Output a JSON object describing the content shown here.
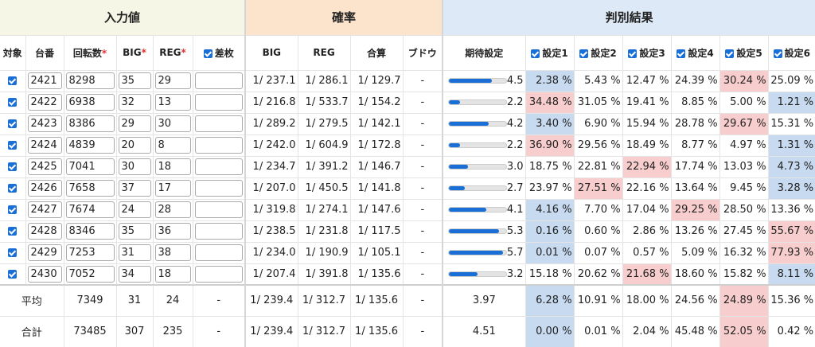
{
  "headers": {
    "input_group": "入力値",
    "prob_group": "確率",
    "result_group": "判別結果",
    "cols": [
      "対象",
      "台番",
      "回転数",
      "BIG",
      "REG",
      "差枚",
      "BIG",
      "REG",
      "合算",
      "ブドウ",
      "期待設定",
      "設定1",
      "設定2",
      "設定3",
      "設定4",
      "設定5",
      "設定6"
    ]
  },
  "rows": [
    {
      "no": "2421",
      "spins": "8298",
      "big": "35",
      "reg": "29",
      "diff": "",
      "pbig": "1/ 237.1",
      "preg": "1/ 286.1",
      "ptot": "1/ 129.7",
      "budou": "-",
      "exp": "4.5",
      "exp_frac": 0.75,
      "s": [
        "2.38 %",
        "5.43 %",
        "12.47 %",
        "24.39 %",
        "30.24 %",
        "25.09 %"
      ],
      "hi": [
        1,
        0,
        0,
        0,
        2,
        0
      ]
    },
    {
      "no": "2422",
      "spins": "6938",
      "big": "32",
      "reg": "13",
      "diff": "",
      "pbig": "1/ 216.8",
      "preg": "1/ 533.7",
      "ptot": "1/ 154.2",
      "budou": "-",
      "exp": "2.2",
      "exp_frac": 0.2,
      "s": [
        "34.48 %",
        "31.05 %",
        "19.41 %",
        "8.85 %",
        "5.00 %",
        "1.21 %"
      ],
      "hi": [
        2,
        0,
        0,
        0,
        0,
        1
      ]
    },
    {
      "no": "2423",
      "spins": "8386",
      "big": "29",
      "reg": "30",
      "diff": "",
      "pbig": "1/ 289.2",
      "preg": "1/ 279.5",
      "ptot": "1/ 142.1",
      "budou": "-",
      "exp": "4.2",
      "exp_frac": 0.7,
      "s": [
        "3.40 %",
        "6.90 %",
        "15.94 %",
        "28.78 %",
        "29.67 %",
        "15.31 %"
      ],
      "hi": [
        1,
        0,
        0,
        0,
        2,
        0
      ]
    },
    {
      "no": "2424",
      "spins": "4839",
      "big": "20",
      "reg": "8",
      "diff": "",
      "pbig": "1/ 242.0",
      "preg": "1/ 604.9",
      "ptot": "1/ 172.8",
      "budou": "-",
      "exp": "2.2",
      "exp_frac": 0.2,
      "s": [
        "36.90 %",
        "29.56 %",
        "18.49 %",
        "8.77 %",
        "4.97 %",
        "1.31 %"
      ],
      "hi": [
        2,
        0,
        0,
        0,
        0,
        1
      ]
    },
    {
      "no": "2425",
      "spins": "7041",
      "big": "30",
      "reg": "18",
      "diff": "",
      "pbig": "1/ 234.7",
      "preg": "1/ 391.2",
      "ptot": "1/ 146.7",
      "budou": "-",
      "exp": "3.0",
      "exp_frac": 0.33,
      "s": [
        "18.75 %",
        "22.81 %",
        "22.94 %",
        "17.74 %",
        "13.03 %",
        "4.73 %"
      ],
      "hi": [
        0,
        0,
        2,
        0,
        0,
        1
      ]
    },
    {
      "no": "2426",
      "spins": "7658",
      "big": "37",
      "reg": "17",
      "diff": "",
      "pbig": "1/ 207.0",
      "preg": "1/ 450.5",
      "ptot": "1/ 141.8",
      "budou": "-",
      "exp": "2.7",
      "exp_frac": 0.28,
      "s": [
        "23.97 %",
        "27.51 %",
        "22.16 %",
        "13.64 %",
        "9.45 %",
        "3.28 %"
      ],
      "hi": [
        0,
        2,
        0,
        0,
        0,
        1
      ]
    },
    {
      "no": "2427",
      "spins": "7674",
      "big": "24",
      "reg": "28",
      "diff": "",
      "pbig": "1/ 319.8",
      "preg": "1/ 274.1",
      "ptot": "1/ 147.6",
      "budou": "-",
      "exp": "4.1",
      "exp_frac": 0.66,
      "s": [
        "4.16 %",
        "7.70 %",
        "17.04 %",
        "29.25 %",
        "28.50 %",
        "13.36 %"
      ],
      "hi": [
        1,
        0,
        0,
        2,
        0,
        0
      ]
    },
    {
      "no": "2428",
      "spins": "8346",
      "big": "35",
      "reg": "36",
      "diff": "",
      "pbig": "1/ 238.5",
      "preg": "1/ 231.8",
      "ptot": "1/ 117.5",
      "budou": "-",
      "exp": "5.3",
      "exp_frac": 0.88,
      "s": [
        "0.16 %",
        "0.60 %",
        "2.86 %",
        "13.26 %",
        "27.45 %",
        "55.67 %"
      ],
      "hi": [
        1,
        0,
        0,
        0,
        0,
        2
      ]
    },
    {
      "no": "2429",
      "spins": "7253",
      "big": "31",
      "reg": "38",
      "diff": "",
      "pbig": "1/ 234.0",
      "preg": "1/ 190.9",
      "ptot": "1/ 105.1",
      "budou": "-",
      "exp": "5.7",
      "exp_frac": 0.94,
      "s": [
        "0.01 %",
        "0.07 %",
        "0.57 %",
        "5.09 %",
        "16.32 %",
        "77.93 %"
      ],
      "hi": [
        1,
        0,
        0,
        0,
        0,
        2
      ]
    },
    {
      "no": "2430",
      "spins": "7052",
      "big": "34",
      "reg": "18",
      "diff": "",
      "pbig": "1/ 207.4",
      "preg": "1/ 391.8",
      "ptot": "1/ 135.6",
      "budou": "-",
      "exp": "3.2",
      "exp_frac": 0.5,
      "s": [
        "15.18 %",
        "20.62 %",
        "21.68 %",
        "18.60 %",
        "15.82 %",
        "8.11 %"
      ],
      "hi": [
        0,
        0,
        2,
        0,
        0,
        1
      ]
    }
  ],
  "avg": {
    "label": "平均",
    "spins": "7349",
    "big": "31",
    "reg": "24",
    "diff": "-",
    "pbig": "1/ 239.4",
    "preg": "1/ 312.7",
    "ptot": "1/ 135.6",
    "budou": "-",
    "exp": "3.97",
    "s": [
      "6.28 %",
      "10.91 %",
      "18.00 %",
      "24.56 %",
      "24.89 %",
      "15.36 %"
    ],
    "hi": [
      1,
      0,
      0,
      0,
      2,
      0
    ]
  },
  "total": {
    "label": "合計",
    "spins": "73485",
    "big": "307",
    "reg": "235",
    "diff": "-",
    "pbig": "1/ 239.4",
    "preg": "1/ 312.7",
    "ptot": "1/ 135.6",
    "budou": "-",
    "exp": "4.51",
    "s": [
      "0.00 %",
      "0.01 %",
      "2.04 %",
      "45.48 %",
      "52.05 %",
      "0.42 %"
    ],
    "hi": [
      1,
      0,
      0,
      0,
      2,
      0
    ]
  }
}
